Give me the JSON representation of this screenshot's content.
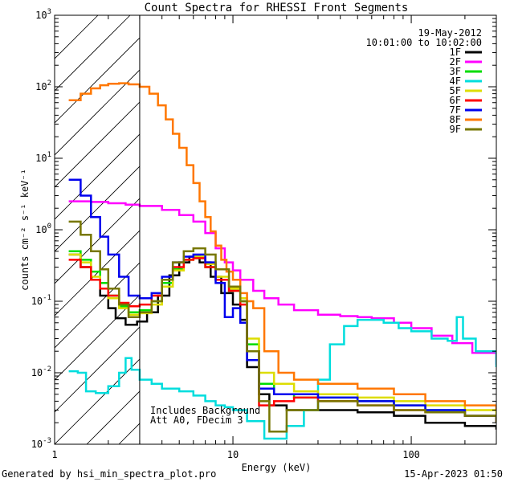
{
  "chart_data": {
    "type": "line",
    "title": "Count Spectra for RHESSI Front Segments",
    "xlabel": "Energy (keV)",
    "ylabel": "counts cm⁻² s⁻¹ keV⁻¹",
    "xscale": "log",
    "yscale": "log",
    "xlim": [
      1,
      300
    ],
    "ylim": [
      0.001,
      1000
    ],
    "x_ticks": [
      {
        "value": 1,
        "label": "1"
      },
      {
        "value": 10,
        "label": "10"
      },
      {
        "value": 100,
        "label": "100"
      }
    ],
    "y_ticks": [
      {
        "value": 0.001,
        "base": "10",
        "exp": "-3"
      },
      {
        "value": 0.01,
        "base": "10",
        "exp": "-2"
      },
      {
        "value": 0.1,
        "base": "10",
        "exp": "-1"
      },
      {
        "value": 1,
        "base": "10",
        "exp": "0"
      },
      {
        "value": 10,
        "base": "10",
        "exp": "1"
      },
      {
        "value": 100,
        "base": "10",
        "exp": "2"
      },
      {
        "value": 1000,
        "base": "10",
        "exp": "3"
      }
    ],
    "shaded_region": {
      "x": [
        1,
        3
      ],
      "pattern": "diagonal hatch"
    },
    "date": "19-May-2012",
    "time_range": "10:01:00 to 10:02:00",
    "annotations": [
      "Includes Background",
      "Att A0, FDecim 3"
    ],
    "series": [
      {
        "name": "1F",
        "color": "#000000",
        "points": [
          [
            1.2,
            0.45
          ],
          [
            1.4,
            0.3
          ],
          [
            1.6,
            0.2
          ],
          [
            1.8,
            0.12
          ],
          [
            2.0,
            0.08
          ],
          [
            2.2,
            0.058
          ],
          [
            2.5,
            0.047
          ],
          [
            2.9,
            0.052
          ],
          [
            3.3,
            0.07
          ],
          [
            3.8,
            0.12
          ],
          [
            4.4,
            0.23
          ],
          [
            5.0,
            0.35
          ],
          [
            5.7,
            0.42
          ],
          [
            6.5,
            0.35
          ],
          [
            7.5,
            0.22
          ],
          [
            8.6,
            0.13
          ],
          [
            10,
            0.09
          ],
          [
            11,
            0.055
          ],
          [
            12,
            0.012
          ],
          [
            14,
            0.005
          ],
          [
            16,
            0.0035
          ],
          [
            20,
            0.003
          ],
          [
            30,
            0.003
          ],
          [
            50,
            0.0028
          ],
          [
            80,
            0.0025
          ],
          [
            120,
            0.002
          ],
          [
            200,
            0.0018
          ],
          [
            300,
            0.0016
          ]
        ]
      },
      {
        "name": "2F",
        "color": "#ff00ff",
        "points": [
          [
            1.2,
            2.5
          ],
          [
            1.6,
            2.45
          ],
          [
            2.0,
            2.35
          ],
          [
            2.5,
            2.25
          ],
          [
            3.0,
            2.15
          ],
          [
            4.0,
            1.9
          ],
          [
            5.0,
            1.6
          ],
          [
            6.0,
            1.3
          ],
          [
            7.0,
            0.9
          ],
          [
            8.0,
            0.55
          ],
          [
            9.0,
            0.35
          ],
          [
            10,
            0.27
          ],
          [
            11,
            0.2
          ],
          [
            13,
            0.14
          ],
          [
            15,
            0.11
          ],
          [
            18,
            0.09
          ],
          [
            22,
            0.075
          ],
          [
            30,
            0.065
          ],
          [
            40,
            0.062
          ],
          [
            50,
            0.06
          ],
          [
            60,
            0.058
          ],
          [
            80,
            0.05
          ],
          [
            100,
            0.042
          ],
          [
            130,
            0.033
          ],
          [
            170,
            0.026
          ],
          [
            220,
            0.019
          ],
          [
            300,
            0.013
          ]
        ]
      },
      {
        "name": "3F",
        "color": "#00dd00",
        "points": [
          [
            1.2,
            0.5
          ],
          [
            1.4,
            0.38
          ],
          [
            1.6,
            0.26
          ],
          [
            1.8,
            0.18
          ],
          [
            2.0,
            0.12
          ],
          [
            2.3,
            0.085
          ],
          [
            2.6,
            0.07
          ],
          [
            3.0,
            0.075
          ],
          [
            3.5,
            0.1
          ],
          [
            4.0,
            0.18
          ],
          [
            4.6,
            0.28
          ],
          [
            5.3,
            0.38
          ],
          [
            6.0,
            0.4
          ],
          [
            7.0,
            0.3
          ],
          [
            8.0,
            0.2
          ],
          [
            9.5,
            0.14
          ],
          [
            11,
            0.1
          ],
          [
            12,
            0.025
          ],
          [
            14,
            0.007
          ],
          [
            17,
            0.005
          ],
          [
            22,
            0.0045
          ],
          [
            30,
            0.0045
          ],
          [
            50,
            0.004
          ],
          [
            80,
            0.0035
          ],
          [
            120,
            0.003
          ],
          [
            200,
            0.0025
          ],
          [
            300,
            0.0022
          ]
        ]
      },
      {
        "name": "4F",
        "color": "#00dddd",
        "points": [
          [
            1.2,
            0.0105
          ],
          [
            1.35,
            0.01
          ],
          [
            1.5,
            0.0055
          ],
          [
            1.7,
            0.0052
          ],
          [
            2.0,
            0.0065
          ],
          [
            2.3,
            0.01
          ],
          [
            2.5,
            0.016
          ],
          [
            2.7,
            0.011
          ],
          [
            3.0,
            0.008
          ],
          [
            3.5,
            0.007
          ],
          [
            4.0,
            0.006
          ],
          [
            5.0,
            0.0055
          ],
          [
            6.0,
            0.0048
          ],
          [
            7.0,
            0.004
          ],
          [
            8.0,
            0.0035
          ],
          [
            9.0,
            0.0033
          ],
          [
            10,
            0.003
          ],
          [
            12,
            0.0021
          ],
          [
            15,
            0.0012
          ],
          [
            20,
            0.0018
          ],
          [
            25,
            0.003
          ],
          [
            30,
            0.008
          ],
          [
            35,
            0.025
          ],
          [
            42,
            0.045
          ],
          [
            50,
            0.055
          ],
          [
            60,
            0.055
          ],
          [
            70,
            0.05
          ],
          [
            85,
            0.042
          ],
          [
            100,
            0.038
          ],
          [
            130,
            0.03
          ],
          [
            160,
            0.028
          ],
          [
            180,
            0.06
          ],
          [
            195,
            0.03
          ],
          [
            230,
            0.02
          ],
          [
            300,
            0.012
          ]
        ]
      },
      {
        "name": "5F",
        "color": "#dddd00",
        "points": [
          [
            1.2,
            0.45
          ],
          [
            1.4,
            0.35
          ],
          [
            1.6,
            0.22
          ],
          [
            1.8,
            0.15
          ],
          [
            2.0,
            0.11
          ],
          [
            2.3,
            0.08
          ],
          [
            2.6,
            0.065
          ],
          [
            3.0,
            0.068
          ],
          [
            3.5,
            0.09
          ],
          [
            4.0,
            0.16
          ],
          [
            4.6,
            0.27
          ],
          [
            5.3,
            0.38
          ],
          [
            6.0,
            0.42
          ],
          [
            7.0,
            0.33
          ],
          [
            8.0,
            0.22
          ],
          [
            9.5,
            0.15
          ],
          [
            11,
            0.11
          ],
          [
            12,
            0.03
          ],
          [
            14,
            0.01
          ],
          [
            17,
            0.007
          ],
          [
            22,
            0.0055
          ],
          [
            30,
            0.005
          ],
          [
            50,
            0.0045
          ],
          [
            80,
            0.004
          ],
          [
            120,
            0.0035
          ],
          [
            200,
            0.003
          ],
          [
            300,
            0.0025
          ]
        ]
      },
      {
        "name": "6F",
        "color": "#ff0000",
        "points": [
          [
            1.2,
            0.38
          ],
          [
            1.4,
            0.3
          ],
          [
            1.6,
            0.2
          ],
          [
            1.8,
            0.15
          ],
          [
            2.0,
            0.12
          ],
          [
            2.3,
            0.095
          ],
          [
            2.6,
            0.085
          ],
          [
            3.0,
            0.09
          ],
          [
            3.5,
            0.12
          ],
          [
            4.0,
            0.2
          ],
          [
            4.6,
            0.3
          ],
          [
            5.3,
            0.38
          ],
          [
            6.0,
            0.4
          ],
          [
            7.0,
            0.3
          ],
          [
            8.0,
            0.2
          ],
          [
            9.5,
            0.14
          ],
          [
            11,
            0.09
          ],
          [
            12,
            0.02
          ],
          [
            14,
            0.0035
          ],
          [
            17,
            0.004
          ],
          [
            22,
            0.0045
          ],
          [
            30,
            0.004
          ],
          [
            50,
            0.0035
          ],
          [
            80,
            0.003
          ],
          [
            120,
            0.0028
          ],
          [
            200,
            0.0025
          ],
          [
            300,
            0.002
          ]
        ]
      },
      {
        "name": "7F",
        "color": "#0000ee",
        "points": [
          [
            1.2,
            5.0
          ],
          [
            1.4,
            3.0
          ],
          [
            1.6,
            1.5
          ],
          [
            1.8,
            0.8
          ],
          [
            2.0,
            0.45
          ],
          [
            2.3,
            0.22
          ],
          [
            2.6,
            0.12
          ],
          [
            3.0,
            0.11
          ],
          [
            3.5,
            0.13
          ],
          [
            4.0,
            0.22
          ],
          [
            4.6,
            0.35
          ],
          [
            5.3,
            0.42
          ],
          [
            6.0,
            0.45
          ],
          [
            7.0,
            0.35
          ],
          [
            8.0,
            0.18
          ],
          [
            9.0,
            0.06
          ],
          [
            10,
            0.08
          ],
          [
            11,
            0.05
          ],
          [
            12,
            0.015
          ],
          [
            14,
            0.006
          ],
          [
            17,
            0.005
          ],
          [
            22,
            0.005
          ],
          [
            30,
            0.0045
          ],
          [
            50,
            0.004
          ],
          [
            80,
            0.0035
          ],
          [
            120,
            0.003
          ],
          [
            200,
            0.0025
          ],
          [
            300,
            0.002
          ]
        ]
      },
      {
        "name": "8F",
        "color": "#ff7700",
        "points": [
          [
            1.2,
            65
          ],
          [
            1.4,
            80
          ],
          [
            1.6,
            95
          ],
          [
            1.8,
            105
          ],
          [
            2.0,
            110
          ],
          [
            2.3,
            112
          ],
          [
            2.6,
            108
          ],
          [
            3.0,
            100
          ],
          [
            3.4,
            80
          ],
          [
            3.8,
            55
          ],
          [
            4.2,
            35
          ],
          [
            4.6,
            22
          ],
          [
            5.0,
            14
          ],
          [
            5.5,
            8
          ],
          [
            6.0,
            4.5
          ],
          [
            6.5,
            2.5
          ],
          [
            7.0,
            1.5
          ],
          [
            7.5,
            0.95
          ],
          [
            8.0,
            0.6
          ],
          [
            8.6,
            0.38
          ],
          [
            9.2,
            0.26
          ],
          [
            10,
            0.2
          ],
          [
            11,
            0.13
          ],
          [
            12,
            0.1
          ],
          [
            13,
            0.08
          ],
          [
            15,
            0.02
          ],
          [
            18,
            0.01
          ],
          [
            22,
            0.008
          ],
          [
            30,
            0.007
          ],
          [
            50,
            0.006
          ],
          [
            80,
            0.005
          ],
          [
            120,
            0.004
          ],
          [
            200,
            0.0035
          ],
          [
            300,
            0.003
          ]
        ]
      },
      {
        "name": "9F",
        "color": "#777700",
        "points": [
          [
            1.2,
            1.3
          ],
          [
            1.4,
            0.85
          ],
          [
            1.6,
            0.5
          ],
          [
            1.8,
            0.28
          ],
          [
            2.0,
            0.15
          ],
          [
            2.3,
            0.09
          ],
          [
            2.6,
            0.06
          ],
          [
            3.0,
            0.07
          ],
          [
            3.5,
            0.1
          ],
          [
            4.0,
            0.2
          ],
          [
            4.6,
            0.35
          ],
          [
            5.3,
            0.5
          ],
          [
            6.0,
            0.55
          ],
          [
            7.0,
            0.45
          ],
          [
            8.0,
            0.28
          ],
          [
            9.5,
            0.16
          ],
          [
            11,
            0.1
          ],
          [
            12,
            0.02
          ],
          [
            14,
            0.004
          ],
          [
            16,
            0.0015
          ],
          [
            20,
            0.003
          ],
          [
            30,
            0.004
          ],
          [
            50,
            0.0035
          ],
          [
            80,
            0.003
          ],
          [
            120,
            0.0028
          ],
          [
            200,
            0.0025
          ],
          [
            300,
            0.002
          ]
        ]
      }
    ]
  },
  "footer": {
    "generated_by": "Generated by hsi_min_spectra_plot.pro",
    "timestamp": "15-Apr-2023 01:50"
  }
}
